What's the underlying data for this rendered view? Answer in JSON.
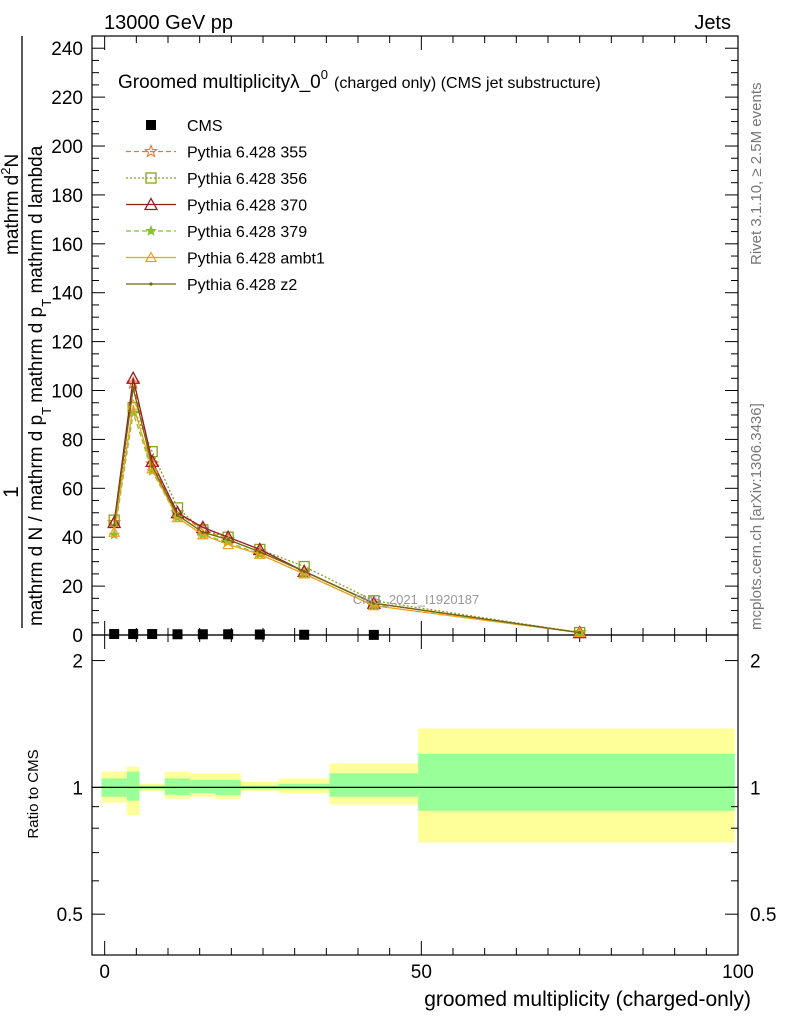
{
  "header": {
    "left": "13000 GeV pp",
    "right": "Jets"
  },
  "side_labels": {
    "rivet": "Rivet 3.1.10, ≥ 2.5M events",
    "mcplots": "mcplots.cern.ch [arXiv:1306.3436]"
  },
  "watermark": "CMS_2021_I1920187",
  "colors": {
    "cms": "#000000",
    "p355": "#ee7722",
    "p356": "#88a020",
    "p370": "#9a1a22",
    "p379": "#88c030",
    "ambt1": "#f0a020",
    "z2": "#6a6a10",
    "band_outer": "#ffff99",
    "band_inner": "#99ff99"
  },
  "chart_data": [
    {
      "type": "line",
      "title_main": "Groomed multiplicityλ_0",
      "title_sup": "0",
      "title_suffix": "(charged only) (CMS jet substructure)",
      "ylabel_frac_num": "1",
      "ylabel_frac_den": "mathrm d N / mathrm d p",
      "ylabel_frac_den_sub": "T",
      "ylabel_main": "mathrm d",
      "ylabel_main_sup": "2",
      "ylabel_main_rest": "N",
      "ylabel_main_den": "mathrm d p",
      "ylabel_main_den_sub": "T",
      "ylabel_main_den_rest": " mathrm d lambda",
      "xlim": [
        -2,
        100
      ],
      "ylim": [
        0,
        245
      ],
      "yticks": [
        0,
        20,
        40,
        60,
        80,
        100,
        120,
        140,
        160,
        180,
        200,
        220,
        240
      ],
      "legend_position": "top-left",
      "series": [
        {
          "name": "CMS",
          "key": "cms",
          "x": [
            1.5,
            4.5,
            7.5,
            11.5,
            15.5,
            19.5,
            24.5,
            31.5,
            42.5
          ],
          "values": [
            0.4,
            0.4,
            0.4,
            0.3,
            0.3,
            0.3,
            0.2,
            0.1,
            0.05
          ]
        },
        {
          "name": "Pythia 6.428 355",
          "key": "p355",
          "x": [
            1.5,
            4.5,
            7.5,
            11.5,
            15.5,
            19.5,
            24.5,
            31.5,
            42.5,
            75
          ],
          "values": [
            46,
            103,
            70,
            50,
            43,
            39,
            34,
            26,
            13,
            1
          ]
        },
        {
          "name": "Pythia 6.428 356",
          "key": "p356",
          "x": [
            1.5,
            4.5,
            7.5,
            11.5,
            15.5,
            19.5,
            24.5,
            31.5,
            42.5,
            75
          ],
          "values": [
            47,
            93,
            75,
            52,
            43,
            40,
            35,
            28,
            14,
            1
          ]
        },
        {
          "name": "Pythia 6.428 370",
          "key": "p370",
          "x": [
            1.5,
            4.5,
            7.5,
            11.5,
            15.5,
            19.5,
            24.5,
            31.5,
            42.5,
            75
          ],
          "values": [
            46,
            105,
            71,
            50,
            44,
            40,
            35,
            26,
            13,
            1
          ]
        },
        {
          "name": "Pythia 6.428 379",
          "key": "p379",
          "x": [
            1.5,
            4.5,
            7.5,
            11.5,
            15.5,
            19.5,
            24.5,
            31.5,
            42.5,
            75
          ],
          "values": [
            41,
            91,
            67,
            48,
            41,
            38,
            33,
            25,
            12,
            1
          ]
        },
        {
          "name": "Pythia 6.428 ambt1",
          "key": "ambt1",
          "x": [
            1.5,
            4.5,
            7.5,
            11.5,
            15.5,
            19.5,
            24.5,
            31.5,
            42.5,
            75
          ],
          "values": [
            42,
            94,
            68,
            48,
            41,
            37,
            33,
            25,
            12,
            1
          ]
        },
        {
          "name": "Pythia 6.428 z2",
          "key": "z2",
          "x": [
            1.5,
            4.5,
            7.5,
            11.5,
            15.5,
            19.5,
            24.5,
            31.5,
            42.5,
            75
          ],
          "values": [
            45,
            101,
            69,
            49,
            42,
            39,
            34,
            26,
            13,
            1
          ]
        }
      ]
    },
    {
      "type": "area",
      "xlabel": "groomed multiplicity (charged-only)",
      "ylabel": "Ratio to CMS",
      "xlim": [
        -2,
        100
      ],
      "ylim": [
        0.4,
        2.3
      ],
      "xticks": [
        0,
        50,
        100
      ],
      "yticks": [
        0.5,
        1,
        2
      ],
      "reference_line": 1,
      "bins": [
        {
          "lo": -0.5,
          "hi": 3.5,
          "outer": [
            0.92,
            1.09
          ],
          "inner": [
            0.95,
            1.05
          ]
        },
        {
          "lo": 3.5,
          "hi": 5.5,
          "outer": [
            0.86,
            1.12
          ],
          "inner": [
            0.93,
            1.09
          ]
        },
        {
          "lo": 5.5,
          "hi": 9.5,
          "outer": [
            0.98,
            1.02
          ],
          "inner": [
            0.99,
            1.01
          ]
        },
        {
          "lo": 9.5,
          "hi": 13.5,
          "outer": [
            0.94,
            1.09
          ],
          "inner": [
            0.96,
            1.05
          ]
        },
        {
          "lo": 13.5,
          "hi": 17.5,
          "outer": [
            0.95,
            1.08
          ],
          "inner": [
            0.97,
            1.04
          ]
        },
        {
          "lo": 17.5,
          "hi": 21.5,
          "outer": [
            0.94,
            1.08
          ],
          "inner": [
            0.96,
            1.04
          ]
        },
        {
          "lo": 21.5,
          "hi": 27.5,
          "outer": [
            0.98,
            1.03
          ],
          "inner": [
            0.99,
            1.01
          ]
        },
        {
          "lo": 27.5,
          "hi": 35.5,
          "outer": [
            0.97,
            1.05
          ],
          "inner": [
            0.99,
            1.02
          ]
        },
        {
          "lo": 35.5,
          "hi": 49.5,
          "outer": [
            0.91,
            1.14
          ],
          "inner": [
            0.95,
            1.08
          ]
        },
        {
          "lo": 49.5,
          "hi": 99.5,
          "outer": [
            0.74,
            1.38
          ],
          "inner": [
            0.88,
            1.2
          ]
        }
      ]
    }
  ]
}
